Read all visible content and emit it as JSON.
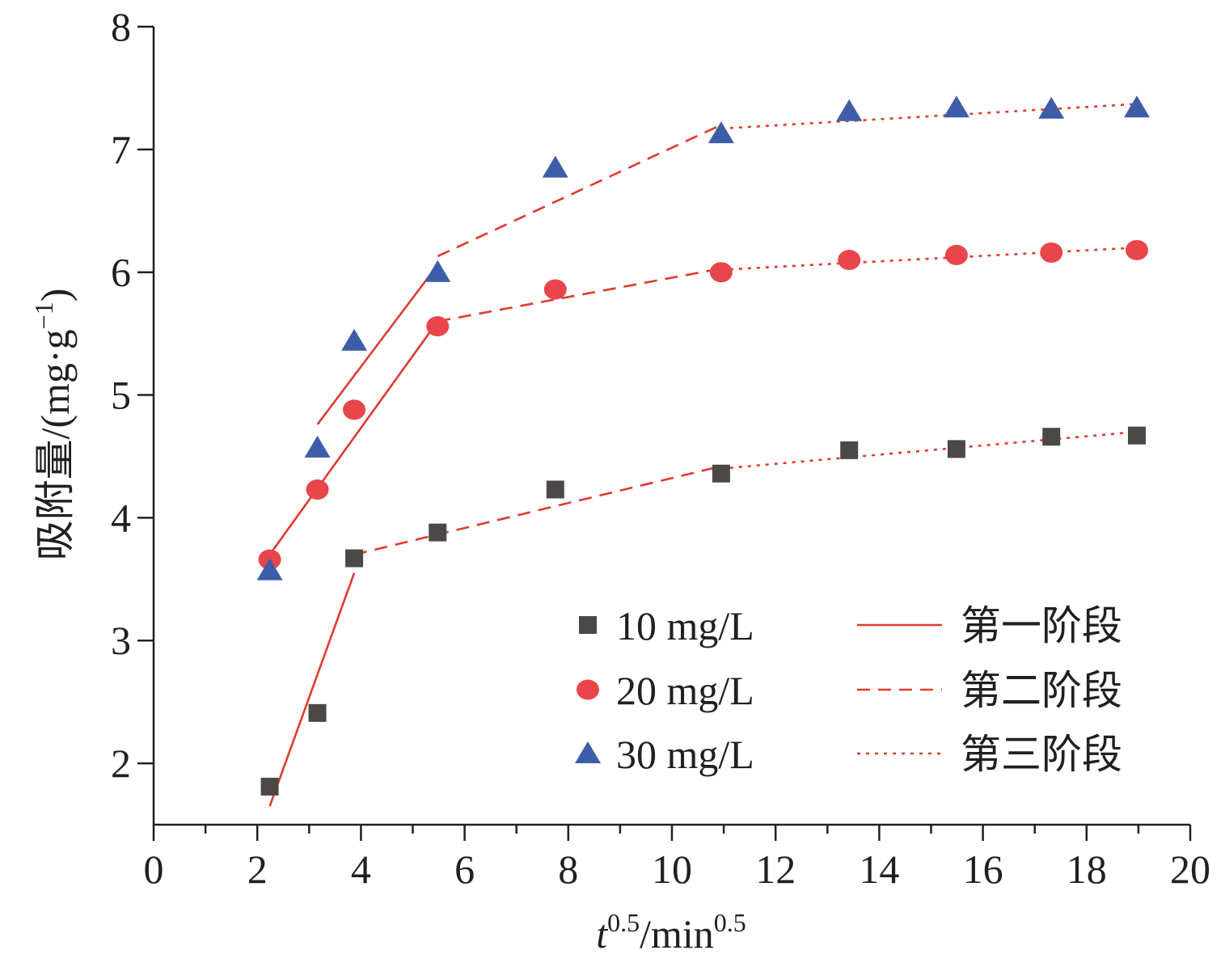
{
  "chart_data": {
    "type": "scatter",
    "xlabel": {
      "base": "t",
      "sup1": "0.5",
      "mid": "/min",
      "sup2": "0.5"
    },
    "ylabel": {
      "main": "吸附量/(mg·g",
      "sup": "−1",
      "close": ")"
    },
    "xlim": [
      0,
      20
    ],
    "ylim": [
      1.5,
      8
    ],
    "xticks": [
      "0",
      "2",
      "4",
      "6",
      "8",
      "10",
      "12",
      "14",
      "16",
      "18",
      "20"
    ],
    "yticks": [
      "2",
      "3",
      "4",
      "5",
      "6",
      "7",
      "8"
    ],
    "grid": false,
    "legend_position": "bottom-right",
    "series": [
      {
        "name": "10 mg/L",
        "marker": "square",
        "color": "#4d4848",
        "x": [
          2.24,
          3.16,
          3.87,
          5.48,
          7.75,
          10.95,
          13.42,
          15.49,
          17.32,
          18.97
        ],
        "y": [
          1.81,
          2.41,
          3.67,
          3.88,
          4.23,
          4.36,
          4.55,
          4.56,
          4.66,
          4.67
        ]
      },
      {
        "name": "20 mg/L",
        "marker": "circle",
        "color": "#e8464b",
        "x": [
          2.24,
          3.16,
          3.87,
          5.48,
          7.75,
          10.95,
          13.42,
          15.49,
          17.32,
          18.97
        ],
        "y": [
          3.66,
          4.23,
          4.88,
          5.56,
          5.86,
          6.0,
          6.1,
          6.14,
          6.16,
          6.18
        ]
      },
      {
        "name": "30 mg/L",
        "marker": "triangle",
        "color": "#3e5da8",
        "x": [
          2.24,
          3.16,
          3.87,
          5.48,
          7.75,
          10.95,
          13.42,
          15.49,
          17.32,
          18.97
        ],
        "y": [
          3.57,
          4.57,
          5.44,
          6.0,
          6.85,
          7.13,
          7.31,
          7.34,
          7.33,
          7.34
        ]
      }
    ],
    "fit_lines": [
      {
        "name": "第一阶段",
        "style": "solid",
        "color": "#e03a2f",
        "segments": [
          {
            "x": [
              2.24,
              3.87
            ],
            "y": [
              1.65,
              3.55
            ]
          },
          {
            "x": [
              2.24,
              5.48
            ],
            "y": [
              3.7,
              5.6
            ]
          },
          {
            "x": [
              3.16,
              5.48
            ],
            "y": [
              4.76,
              6.06
            ]
          }
        ]
      },
      {
        "name": "第二阶段",
        "style": "dashed",
        "color": "#e03a2f",
        "segments": [
          {
            "x": [
              3.87,
              10.95
            ],
            "y": [
              3.7,
              4.42
            ]
          },
          {
            "x": [
              5.48,
              10.95
            ],
            "y": [
              5.6,
              6.03
            ]
          },
          {
            "x": [
              5.48,
              10.95
            ],
            "y": [
              6.13,
              7.2
            ]
          }
        ]
      },
      {
        "name": "第三阶段",
        "style": "dotted",
        "color": "#e03a2f",
        "segments": [
          {
            "x": [
              10.95,
              18.97
            ],
            "y": [
              4.4,
              4.7
            ]
          },
          {
            "x": [
              10.95,
              18.97
            ],
            "y": [
              6.02,
              6.2
            ]
          },
          {
            "x": [
              10.95,
              18.97
            ],
            "y": [
              7.17,
              7.37
            ]
          }
        ]
      }
    ]
  }
}
